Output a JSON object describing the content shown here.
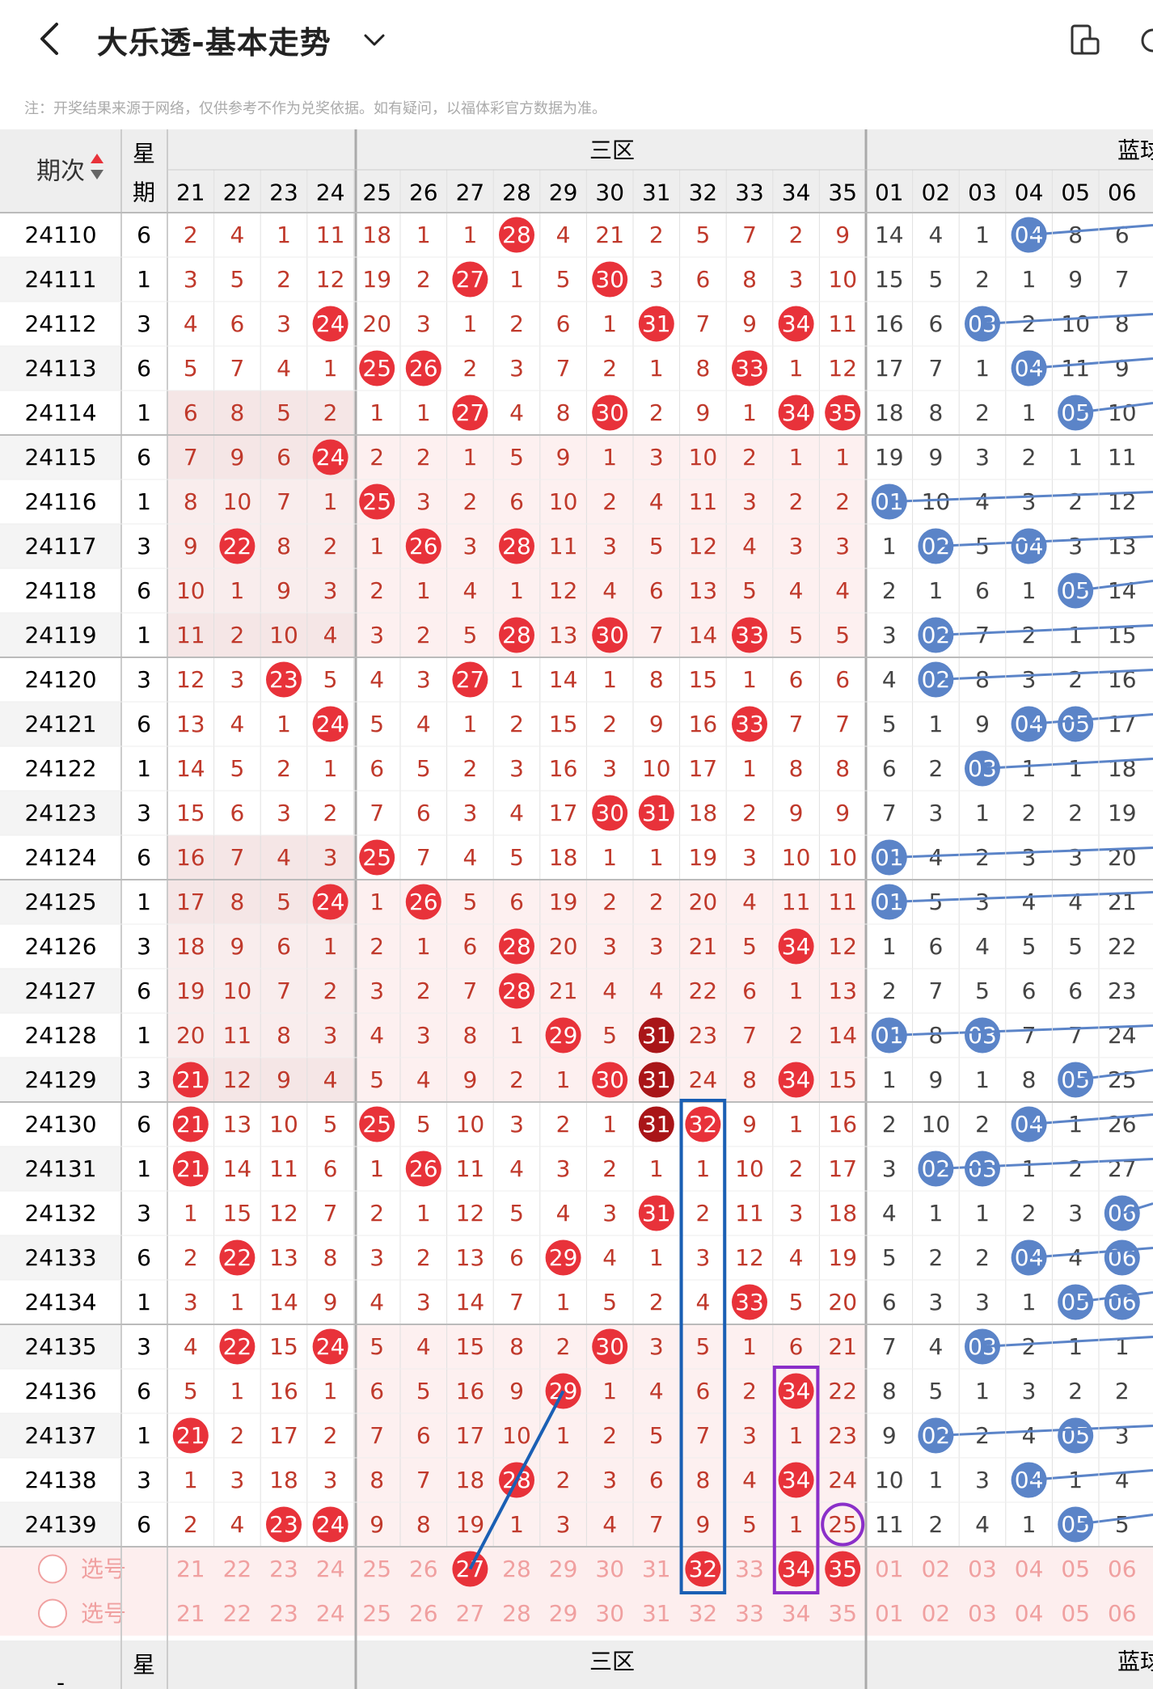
{
  "header": {
    "title": "大乐透-基本走势",
    "back_icon": "chevron-left-icon",
    "dropdown_icon": "chevron-down-icon",
    "phone_icon": "phone-rotate-icon"
  },
  "note": "注：开奖结果来源于网络，仅供参考不作为兑奖依据。如有疑问，以福体彩官方数据为准。",
  "table": {
    "period_header": "期次",
    "weekday_header": "星期",
    "zone3_header": "三区",
    "blue_header": "蓝球",
    "red_columns": [
      "21",
      "22",
      "23",
      "24",
      "25",
      "26",
      "27",
      "28",
      "29",
      "30",
      "31",
      "32",
      "33",
      "34",
      "35"
    ],
    "blue_columns": [
      "01",
      "02",
      "03",
      "04",
      "05",
      "06"
    ],
    "select_label": "选号",
    "rows": [
      {
        "period": "24110",
        "weekday": "6",
        "red": [
          "2",
          "4",
          "1",
          "11",
          "18",
          "1",
          "1",
          "28",
          "4",
          "21",
          "2",
          "5",
          "7",
          "2",
          "9"
        ],
        "blue": [
          "14",
          "4",
          "1",
          "04",
          "8",
          "6"
        ]
      },
      {
        "period": "24111",
        "weekday": "1",
        "red": [
          "3",
          "5",
          "2",
          "12",
          "19",
          "2",
          "27",
          "1",
          "5",
          "30",
          "3",
          "6",
          "8",
          "3",
          "10"
        ],
        "blue": [
          "15",
          "5",
          "2",
          "1",
          "9",
          "7"
        ]
      },
      {
        "period": "24112",
        "weekday": "3",
        "red": [
          "4",
          "6",
          "3",
          "24",
          "20",
          "3",
          "1",
          "2",
          "6",
          "1",
          "31",
          "7",
          "9",
          "34",
          "11"
        ],
        "blue": [
          "16",
          "6",
          "03",
          "2",
          "10",
          "8"
        ]
      },
      {
        "period": "24113",
        "weekday": "6",
        "red": [
          "5",
          "7",
          "4",
          "1",
          "25",
          "26",
          "2",
          "3",
          "7",
          "2",
          "1",
          "8",
          "33",
          "1",
          "12"
        ],
        "blue": [
          "17",
          "7",
          "1",
          "04",
          "11",
          "9"
        ]
      },
      {
        "period": "24114",
        "weekday": "1",
        "red": [
          "6",
          "8",
          "5",
          "2",
          "1",
          "1",
          "27",
          "4",
          "8",
          "30",
          "2",
          "9",
          "1",
          "34",
          "35"
        ],
        "blue": [
          "18",
          "8",
          "2",
          "1",
          "05",
          "10"
        ]
      },
      {
        "period": "24115",
        "weekday": "6",
        "red": [
          "7",
          "9",
          "6",
          "24",
          "2",
          "2",
          "1",
          "5",
          "9",
          "1",
          "3",
          "10",
          "2",
          "1",
          "1"
        ],
        "blue": [
          "19",
          "9",
          "3",
          "2",
          "1",
          "11"
        ]
      },
      {
        "period": "24116",
        "weekday": "1",
        "red": [
          "8",
          "10",
          "7",
          "1",
          "25",
          "3",
          "2",
          "6",
          "10",
          "2",
          "4",
          "11",
          "3",
          "2",
          "2"
        ],
        "blue": [
          "01",
          "10",
          "4",
          "3",
          "2",
          "12"
        ]
      },
      {
        "period": "24117",
        "weekday": "3",
        "red": [
          "9",
          "22",
          "8",
          "2",
          "1",
          "26",
          "3",
          "28",
          "11",
          "3",
          "5",
          "12",
          "4",
          "3",
          "3"
        ],
        "blue": [
          "1",
          "02",
          "5",
          "04",
          "3",
          "13"
        ]
      },
      {
        "period": "24118",
        "weekday": "6",
        "red": [
          "10",
          "1",
          "9",
          "3",
          "2",
          "1",
          "4",
          "1",
          "12",
          "4",
          "6",
          "13",
          "5",
          "4",
          "4"
        ],
        "blue": [
          "2",
          "1",
          "6",
          "1",
          "05",
          "14"
        ]
      },
      {
        "period": "24119",
        "weekday": "1",
        "red": [
          "11",
          "2",
          "10",
          "4",
          "3",
          "2",
          "5",
          "28",
          "13",
          "30",
          "7",
          "14",
          "33",
          "5",
          "5"
        ],
        "blue": [
          "3",
          "02",
          "7",
          "2",
          "1",
          "15"
        ]
      },
      {
        "period": "24120",
        "weekday": "3",
        "red": [
          "12",
          "3",
          "23",
          "5",
          "4",
          "3",
          "27",
          "1",
          "14",
          "1",
          "8",
          "15",
          "1",
          "6",
          "6"
        ],
        "blue": [
          "4",
          "02",
          "8",
          "3",
          "2",
          "16"
        ]
      },
      {
        "period": "24121",
        "weekday": "6",
        "red": [
          "13",
          "4",
          "1",
          "24",
          "5",
          "4",
          "1",
          "2",
          "15",
          "2",
          "9",
          "16",
          "33",
          "7",
          "7"
        ],
        "blue": [
          "5",
          "1",
          "9",
          "04",
          "05",
          "17"
        ]
      },
      {
        "period": "24122",
        "weekday": "1",
        "red": [
          "14",
          "5",
          "2",
          "1",
          "6",
          "5",
          "2",
          "3",
          "16",
          "3",
          "10",
          "17",
          "1",
          "8",
          "8"
        ],
        "blue": [
          "6",
          "2",
          "03",
          "1",
          "1",
          "18"
        ]
      },
      {
        "period": "24123",
        "weekday": "3",
        "red": [
          "15",
          "6",
          "3",
          "2",
          "7",
          "6",
          "3",
          "4",
          "17",
          "30",
          "31",
          "18",
          "2",
          "9",
          "9"
        ],
        "blue": [
          "7",
          "3",
          "1",
          "2",
          "2",
          "19"
        ]
      },
      {
        "period": "24124",
        "weekday": "6",
        "red": [
          "16",
          "7",
          "4",
          "3",
          "25",
          "7",
          "4",
          "5",
          "18",
          "1",
          "1",
          "19",
          "3",
          "10",
          "10"
        ],
        "blue": [
          "01",
          "4",
          "2",
          "3",
          "3",
          "20"
        ]
      },
      {
        "period": "24125",
        "weekday": "1",
        "red": [
          "17",
          "8",
          "5",
          "24",
          "1",
          "26",
          "5",
          "6",
          "19",
          "2",
          "2",
          "20",
          "4",
          "11",
          "11"
        ],
        "blue": [
          "01",
          "5",
          "3",
          "4",
          "4",
          "21"
        ]
      },
      {
        "period": "24126",
        "weekday": "3",
        "red": [
          "18",
          "9",
          "6",
          "1",
          "2",
          "1",
          "6",
          "28",
          "20",
          "3",
          "3",
          "21",
          "5",
          "34",
          "12"
        ],
        "blue": [
          "1",
          "6",
          "4",
          "5",
          "5",
          "22"
        ]
      },
      {
        "period": "24127",
        "weekday": "6",
        "red": [
          "19",
          "10",
          "7",
          "2",
          "3",
          "2",
          "7",
          "28",
          "21",
          "4",
          "4",
          "22",
          "6",
          "1",
          "13"
        ],
        "blue": [
          "2",
          "7",
          "5",
          "6",
          "6",
          "23"
        ]
      },
      {
        "period": "24128",
        "weekday": "1",
        "red": [
          "20",
          "11",
          "8",
          "3",
          "4",
          "3",
          "8",
          "1",
          "29",
          "5",
          "31",
          "23",
          "7",
          "2",
          "14"
        ],
        "blue": [
          "01",
          "8",
          "03",
          "7",
          "7",
          "24"
        ]
      },
      {
        "period": "24129",
        "weekday": "3",
        "red": [
          "21",
          "12",
          "9",
          "4",
          "5",
          "4",
          "9",
          "2",
          "1",
          "30",
          "31",
          "24",
          "8",
          "34",
          "15"
        ],
        "blue": [
          "1",
          "9",
          "1",
          "8",
          "05",
          "25"
        ]
      },
      {
        "period": "24130",
        "weekday": "6",
        "red": [
          "21",
          "13",
          "10",
          "5",
          "25",
          "5",
          "10",
          "3",
          "2",
          "1",
          "31",
          "32",
          "9",
          "1",
          "16"
        ],
        "blue": [
          "2",
          "10",
          "2",
          "04",
          "1",
          "26"
        ]
      },
      {
        "period": "24131",
        "weekday": "1",
        "red": [
          "21",
          "14",
          "11",
          "6",
          "1",
          "26",
          "11",
          "4",
          "3",
          "2",
          "1",
          "1",
          "10",
          "2",
          "17"
        ],
        "blue": [
          "3",
          "02",
          "03",
          "1",
          "2",
          "27"
        ]
      },
      {
        "period": "24132",
        "weekday": "3",
        "red": [
          "1",
          "15",
          "12",
          "7",
          "2",
          "1",
          "12",
          "5",
          "4",
          "3",
          "31",
          "2",
          "11",
          "3",
          "18"
        ],
        "blue": [
          "4",
          "1",
          "1",
          "2",
          "3",
          "06"
        ]
      },
      {
        "period": "24133",
        "weekday": "6",
        "red": [
          "2",
          "22",
          "13",
          "8",
          "3",
          "2",
          "13",
          "6",
          "29",
          "4",
          "1",
          "3",
          "12",
          "4",
          "19"
        ],
        "blue": [
          "5",
          "2",
          "2",
          "04",
          "4",
          "06"
        ]
      },
      {
        "period": "24134",
        "weekday": "1",
        "red": [
          "3",
          "1",
          "14",
          "9",
          "4",
          "3",
          "14",
          "7",
          "1",
          "5",
          "2",
          "4",
          "33",
          "5",
          "20"
        ],
        "blue": [
          "6",
          "3",
          "3",
          "1",
          "05",
          "06"
        ]
      },
      {
        "period": "24135",
        "weekday": "3",
        "red": [
          "4",
          "22",
          "15",
          "24",
          "5",
          "4",
          "15",
          "8",
          "2",
          "30",
          "3",
          "5",
          "1",
          "6",
          "21"
        ],
        "blue": [
          "7",
          "4",
          "03",
          "2",
          "1",
          "1"
        ]
      },
      {
        "period": "24136",
        "weekday": "6",
        "red": [
          "5",
          "1",
          "16",
          "1",
          "6",
          "5",
          "16",
          "9",
          "29",
          "1",
          "4",
          "6",
          "2",
          "34",
          "22"
        ],
        "blue": [
          "8",
          "5",
          "1",
          "3",
          "2",
          "2"
        ]
      },
      {
        "period": "24137",
        "weekday": "1",
        "red": [
          "21",
          "2",
          "17",
          "2",
          "7",
          "6",
          "17",
          "10",
          "1",
          "2",
          "5",
          "7",
          "3",
          "1",
          "23"
        ],
        "blue": [
          "9",
          "02",
          "2",
          "4",
          "05",
          "3"
        ]
      },
      {
        "period": "24138",
        "weekday": "3",
        "red": [
          "1",
          "3",
          "18",
          "3",
          "8",
          "7",
          "18",
          "28",
          "2",
          "3",
          "6",
          "8",
          "4",
          "34",
          "24"
        ],
        "blue": [
          "10",
          "1",
          "3",
          "04",
          "1",
          "4"
        ]
      },
      {
        "period": "24139",
        "weekday": "6",
        "red": [
          "2",
          "4",
          "23",
          "24",
          "9",
          "8",
          "19",
          "1",
          "3",
          "4",
          "7",
          "9",
          "5",
          "1",
          "25"
        ],
        "blue": [
          "11",
          "2",
          "4",
          "1",
          "05",
          "5"
        ]
      }
    ],
    "select_rows": [
      {
        "red_selected": [
          "27",
          "32",
          "34",
          "35"
        ]
      },
      {
        "red_selected": []
      }
    ],
    "bottom_weekday": "星期"
  },
  "colors": {
    "red_ball": "#e8323a",
    "dark_red_ball": "#a91518",
    "blue_ball": "#5b84c8",
    "blue_box": "#1a5fb4",
    "purple_box": "#8b2fc9",
    "select_text": "#f0a0a0"
  }
}
